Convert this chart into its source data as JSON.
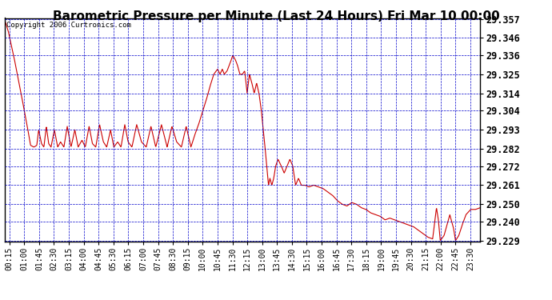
{
  "title": "Barometric Pressure per Minute (Last 24 Hours) Fri Mar 10 00:00",
  "copyright": "Copyright 2006 Curtronics.com",
  "line_color": "#cc0000",
  "background_color": "#ffffff",
  "plot_bg_color": "#ffffff",
  "grid_color": "#0000cc",
  "border_color": "#000000",
  "title_fontsize": 11,
  "ylabel_fontsize": 8.5,
  "xlabel_fontsize": 7,
  "ylim": [
    29.229,
    29.357
  ],
  "yticks": [
    29.229,
    29.24,
    29.25,
    29.261,
    29.272,
    29.282,
    29.293,
    29.304,
    29.314,
    29.325,
    29.336,
    29.346,
    29.357
  ],
  "xtick_labels": [
    "00:15",
    "01:00",
    "01:45",
    "02:30",
    "03:15",
    "04:00",
    "04:45",
    "05:30",
    "06:15",
    "07:00",
    "07:45",
    "08:30",
    "09:15",
    "10:00",
    "10:45",
    "11:30",
    "12:15",
    "13:00",
    "13:45",
    "14:30",
    "15:15",
    "16:00",
    "16:45",
    "17:30",
    "18:15",
    "19:00",
    "19:45",
    "20:30",
    "21:15",
    "22:00",
    "22:45",
    "23:30"
  ],
  "waypoints": [
    [
      0.0,
      29.357
    ],
    [
      0.008,
      29.35
    ],
    [
      0.02,
      29.335
    ],
    [
      0.035,
      29.314
    ],
    [
      0.048,
      29.295
    ],
    [
      0.055,
      29.284
    ],
    [
      0.062,
      29.283
    ],
    [
      0.068,
      29.284
    ],
    [
      0.072,
      29.293
    ],
    [
      0.078,
      29.285
    ],
    [
      0.083,
      29.283
    ],
    [
      0.088,
      29.295
    ],
    [
      0.093,
      29.285
    ],
    [
      0.098,
      29.283
    ],
    [
      0.105,
      29.293
    ],
    [
      0.112,
      29.283
    ],
    [
      0.118,
      29.286
    ],
    [
      0.125,
      29.283
    ],
    [
      0.132,
      29.295
    ],
    [
      0.14,
      29.283
    ],
    [
      0.148,
      29.293
    ],
    [
      0.155,
      29.283
    ],
    [
      0.163,
      29.287
    ],
    [
      0.17,
      29.283
    ],
    [
      0.178,
      29.295
    ],
    [
      0.185,
      29.285
    ],
    [
      0.192,
      29.283
    ],
    [
      0.2,
      29.296
    ],
    [
      0.208,
      29.286
    ],
    [
      0.215,
      29.283
    ],
    [
      0.223,
      29.293
    ],
    [
      0.23,
      29.283
    ],
    [
      0.238,
      29.286
    ],
    [
      0.245,
      29.283
    ],
    [
      0.253,
      29.296
    ],
    [
      0.26,
      29.286
    ],
    [
      0.268,
      29.283
    ],
    [
      0.278,
      29.296
    ],
    [
      0.288,
      29.286
    ],
    [
      0.298,
      29.283
    ],
    [
      0.308,
      29.295
    ],
    [
      0.318,
      29.283
    ],
    [
      0.33,
      29.296
    ],
    [
      0.342,
      29.283
    ],
    [
      0.352,
      29.295
    ],
    [
      0.362,
      29.286
    ],
    [
      0.372,
      29.283
    ],
    [
      0.382,
      29.295
    ],
    [
      0.392,
      29.283
    ],
    [
      0.4,
      29.29
    ],
    [
      0.408,
      29.296
    ],
    [
      0.416,
      29.303
    ],
    [
      0.424,
      29.31
    ],
    [
      0.432,
      29.318
    ],
    [
      0.44,
      29.325
    ],
    [
      0.448,
      29.328
    ],
    [
      0.453,
      29.325
    ],
    [
      0.458,
      29.328
    ],
    [
      0.462,
      29.325
    ],
    [
      0.468,
      29.327
    ],
    [
      0.475,
      29.332
    ],
    [
      0.48,
      29.336
    ],
    [
      0.486,
      29.333
    ],
    [
      0.49,
      29.33
    ],
    [
      0.495,
      29.325
    ],
    [
      0.5,
      29.325
    ],
    [
      0.505,
      29.327
    ],
    [
      0.51,
      29.314
    ],
    [
      0.515,
      29.325
    ],
    [
      0.52,
      29.32
    ],
    [
      0.525,
      29.314
    ],
    [
      0.53,
      29.32
    ],
    [
      0.535,
      29.314
    ],
    [
      0.54,
      29.304
    ],
    [
      0.548,
      29.282
    ],
    [
      0.555,
      29.261
    ],
    [
      0.558,
      29.265
    ],
    [
      0.562,
      29.261
    ],
    [
      0.566,
      29.265
    ],
    [
      0.57,
      29.272
    ],
    [
      0.575,
      29.276
    ],
    [
      0.582,
      29.272
    ],
    [
      0.588,
      29.268
    ],
    [
      0.594,
      29.272
    ],
    [
      0.6,
      29.276
    ],
    [
      0.606,
      29.272
    ],
    [
      0.612,
      29.261
    ],
    [
      0.618,
      29.265
    ],
    [
      0.624,
      29.261
    ],
    [
      0.632,
      29.261
    ],
    [
      0.64,
      29.26
    ],
    [
      0.65,
      29.261
    ],
    [
      0.66,
      29.26
    ],
    [
      0.67,
      29.259
    ],
    [
      0.68,
      29.257
    ],
    [
      0.69,
      29.255
    ],
    [
      0.7,
      29.252
    ],
    [
      0.71,
      29.25
    ],
    [
      0.72,
      29.249
    ],
    [
      0.73,
      29.251
    ],
    [
      0.74,
      29.25
    ],
    [
      0.75,
      29.248
    ],
    [
      0.76,
      29.247
    ],
    [
      0.77,
      29.245
    ],
    [
      0.78,
      29.244
    ],
    [
      0.79,
      29.243
    ],
    [
      0.8,
      29.241
    ],
    [
      0.81,
      29.242
    ],
    [
      0.82,
      29.241
    ],
    [
      0.83,
      29.24
    ],
    [
      0.84,
      29.239
    ],
    [
      0.85,
      29.238
    ],
    [
      0.86,
      29.237
    ],
    [
      0.87,
      29.235
    ],
    [
      0.88,
      29.233
    ],
    [
      0.89,
      29.231
    ],
    [
      0.9,
      29.23
    ],
    [
      0.908,
      29.248
    ],
    [
      0.912,
      29.241
    ],
    [
      0.916,
      29.229
    ],
    [
      0.924,
      29.232
    ],
    [
      0.93,
      29.238
    ],
    [
      0.936,
      29.244
    ],
    [
      0.94,
      29.24
    ],
    [
      0.944,
      29.236
    ],
    [
      0.948,
      29.229
    ],
    [
      0.955,
      29.232
    ],
    [
      0.962,
      29.238
    ],
    [
      0.97,
      29.244
    ],
    [
      0.98,
      29.247
    ],
    [
      0.99,
      29.247
    ],
    [
      1.0,
      29.248
    ]
  ]
}
